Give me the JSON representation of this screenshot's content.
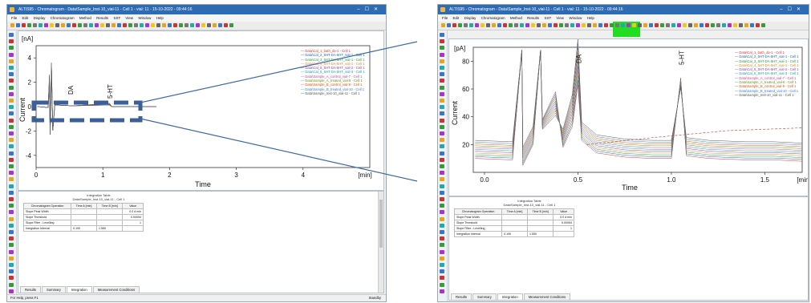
{
  "left_window": {
    "title": "ALTIS95 - Chromatogram - Data\\Sample_Inst-10_vial-11 - Cell 1 - vial: 11 - 15-10-2022 - 09:44:16",
    "menu": [
      "File",
      "Edit",
      "Display",
      "Chromatogram",
      "Method",
      "Results",
      "SST",
      "View",
      "Window",
      "Help"
    ],
    "chart": {
      "unit": "[nA]",
      "ylabel": "Current",
      "xlabel": "Time",
      "xunit": "[min]",
      "yticks": [
        "4",
        "2",
        "0",
        "-2",
        "-4"
      ],
      "xticks": [
        "0",
        "1",
        "2",
        "3",
        "4"
      ],
      "peak_labels": [
        "DA",
        "5-HT"
      ]
    },
    "legend": [
      "Data\\Cal_1_bath_do-1 - Cell 1",
      "Data\\Cal_2_5HT-DA-5HT_vial-1 - Cell 1",
      "Data\\Cal_3_5HT-DA-5HT_vial-1 - Cell 1",
      "Data\\Cal_4_5HT-DA-5HT_vial-1 - Cell 1",
      "Data\\Cal_5_5HT-DA-5HT_vial-2 - Cell 1",
      "Data\\Cal_6_5HT-DA-5HT_vial-3 - Cell 1",
      "Data\\Sample_A_control_vial-7 - Cell 1",
      "Data\\Sample_A_treated_vial-8 - Cell 1",
      "Data\\Sample_B_control_vial-9 - Cell 1",
      "Data\\Sample_B_treated_vial-10 - Cell 1",
      "Data\\Sample_Inst-10_vial-11 - Cell 1"
    ],
    "table": {
      "title": "Integration Table",
      "subtitle": "Data\\Sample_Inst-10_vial-11 - Cell 1",
      "headers": [
        "Chromatogram Operation",
        "Time A [min]",
        "Time B [min]",
        "Value"
      ],
      "rows": [
        [
          "Slope Peak Width",
          "",
          "",
          "0.0 d min"
        ],
        [
          "Slope Threshold",
          "",
          "",
          "0.00054"
        ],
        [
          "Slope Filter - Levelling",
          "",
          "",
          "1"
        ],
        [
          "Integration Interval",
          "0.190",
          "1.550",
          ""
        ]
      ]
    },
    "tabs": [
      "Results",
      "Summary",
      "Integration",
      "Measurement Conditions"
    ],
    "status_left": "For Help, press F1",
    "status_right": "Standby"
  },
  "right_window": {
    "title": "ALTIS95 - Chromatogram - Data\\Sample_Inst-10_vial-11 - Cell 1 - vial: 11 - 15-10-2022 - 09:44:16",
    "menu": [
      "File",
      "Edit",
      "Display",
      "Chromatogram",
      "Method",
      "Results",
      "SST",
      "View",
      "Window",
      "Help"
    ],
    "chart": {
      "unit": "[pA]",
      "ylabel": "Current",
      "xlabel": "Time",
      "xunit": "[min]",
      "yticks": [
        "80",
        "60",
        "40",
        "20"
      ],
      "xticks": [
        "0.0",
        "0.5",
        "1.0",
        "1.5"
      ],
      "peak_labels": [
        "DA",
        "5-HT"
      ]
    },
    "legend": [
      "Data\\Cal_1_bath_do-1 - Cell 1",
      "Data\\Cal_2_5HT-DA-5HT_vial-1 - Cell 1",
      "Data\\Cal_3_5HT-DA-5HT_vial-1 - Cell 1",
      "Data\\Cal_4_5HT-DA-5HT_vial-1 - Cell 1",
      "Data\\Cal_5_5HT-DA-5HT_vial-2 - Cell 1",
      "Data\\Cal_6_5HT-DA-5HT_vial-3 - Cell 1",
      "Data\\Sample_A_control_vial-7 - Cell 1",
      "Data\\Sample_A_treated_vial-8 - Cell 1",
      "Data\\Sample_B_control_vial-9 - Cell 1",
      "Data\\Sample_B_treated_vial-10 - Cell 1",
      "Data\\Sample_Inst-10_vial-11 - Cell 1"
    ],
    "table": {
      "title": "Integration Table",
      "subtitle": "Data\\Sample_Inst-10_vial-11 - Cell 1",
      "headers": [
        "Chromatogram Operation",
        "Time A [min]",
        "Time B [min]",
        "Value"
      ],
      "rows": [
        [
          "Slope Peak Width",
          "",
          "",
          "0.0 d min"
        ],
        [
          "Slope Threshold",
          "",
          "",
          "0.00054"
        ],
        [
          "Slope Filter - Levelling",
          "",
          "",
          "1"
        ],
        [
          "Integration Interval",
          "0.190",
          "1.550",
          ""
        ]
      ]
    },
    "tabs": [
      "Results",
      "Summary",
      "Integration",
      "Measurement Conditions"
    ]
  },
  "colors": {
    "titlebar": "#2d6bb3",
    "highlight_green": "#22dd22",
    "zoom_box": "#3a5f9a",
    "callout_line": "#3f6aa6"
  },
  "legend_colors": [
    "#e0312f",
    "#1b66c9",
    "#2b9a3c",
    "#e08a1c",
    "#8a3fc0",
    "#17a3a8",
    "#c24a8e",
    "#6f8f1a",
    "#d35400",
    "#3b7dd8",
    "#555555"
  ]
}
